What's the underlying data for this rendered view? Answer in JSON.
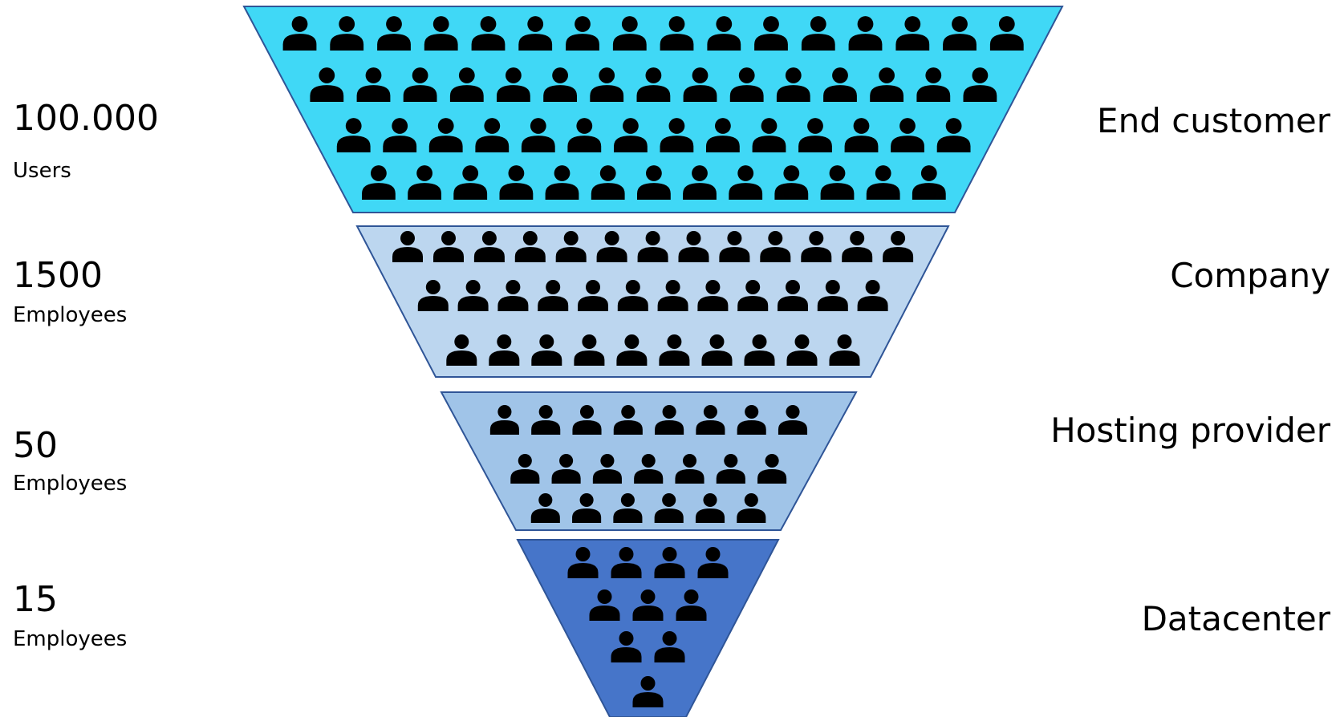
{
  "tiers": [
    {
      "name": "End customer",
      "count": "100.000",
      "unit": "Users",
      "color": "#40d8f6",
      "person_rows": [
        16,
        15,
        14,
        13
      ]
    },
    {
      "name": "Company",
      "count": "1500",
      "unit": "Employees",
      "color": "#bcd6ef",
      "person_rows": [
        13,
        12,
        10
      ]
    },
    {
      "name": "Hosting provider",
      "count": "50",
      "unit": "Employees",
      "color": "#a0c4e8",
      "person_rows": [
        8,
        7,
        6
      ]
    },
    {
      "name": "Datacenter",
      "count": "15",
      "unit": "Employees",
      "color": "#4675c9",
      "person_rows": [
        4,
        3,
        2,
        1
      ]
    }
  ],
  "icon": "person-icon",
  "outline_color": "#2f5597"
}
